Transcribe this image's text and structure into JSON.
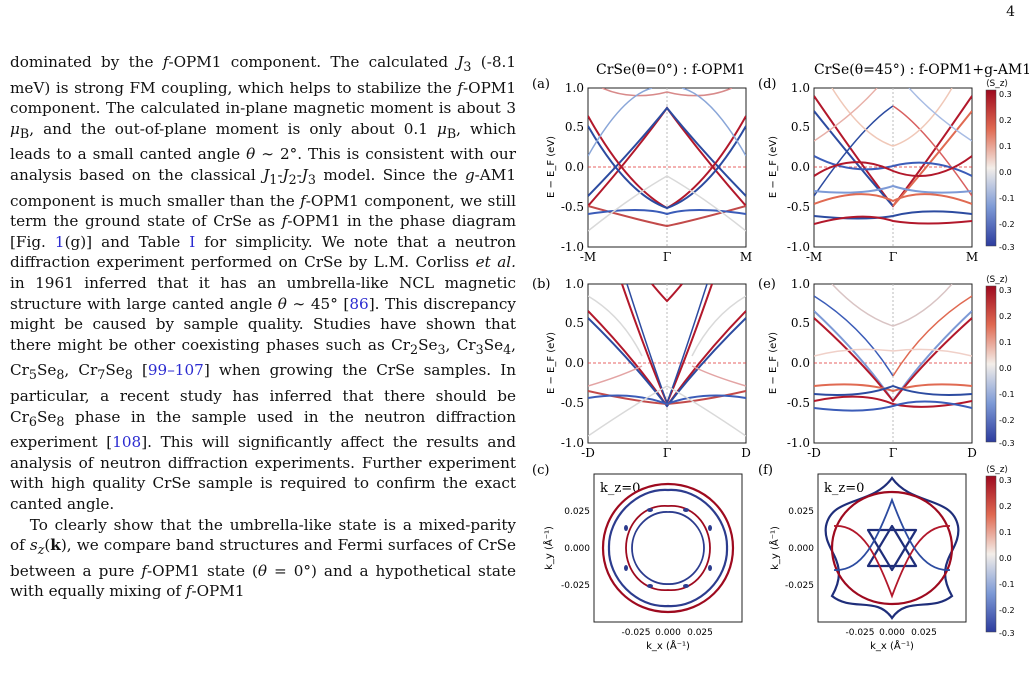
{
  "page_number": "4",
  "paragraph1": "dominated by the f-OPM1 component. The calculated J3 (-8.1 meV) is strong FM coupling, which helps to stabilize the f-OPM1 component. The calculated in-plane magnetic moment is about 3 μB, and the out-of-plane moment is only about 0.1 μB, which leads to a small canted angle θ ∼ 2°. This is consistent with our analysis based on the classical J1-J2-J3 model. Since the g-AM1 component is much smaller than the f-OPM1 component, we still term the ground state of CrSe as f-OPM1 in the phase diagram [Fig. 1(g)] and Table I for simplicity. We note that a neutron diffraction experiment performed on CrSe by L.M. Corliss et al. in 1961 inferred that it has an umbrella-like NCL magnetic structure with large canted angle θ ∼ 45° [86]. This discrepancy might be caused by sample quality. Studies have shown that there might be other coexisting phases such as Cr2Se3, Cr3Se4, Cr5Se8, Cr7Se8 [99–107] when growing the CrSe samples. In particular, a recent study has inferred that there should be Cr6Se8 phase in the sample used in the neutron diffraction experiment [108]. This will significantly affect the results and analysis of neutron diffraction experiments. Further experiment with high quality CrSe sample is required to confirm the exact canted angle.",
  "paragraph2": "To clearly show that the umbrella-like state is a mixed-parity of sz(k), we compare band structures and Fermi surfaces of CrSe between a pure f-OPM1 state (θ = 0°) and a hypothetical state with equally mixing of f-OPM1",
  "figure": {
    "title_left": "CrSe(θ=0°) : f-OPM1",
    "title_right": "CrSe(θ=45°) : f-OPM1+g-AM1",
    "panels": {
      "a": "(a)",
      "b": "(b)",
      "c": "(c)",
      "d": "(d)",
      "e": "(e)",
      "f": "(f)"
    },
    "band_ylabel": "E − E_F (eV)",
    "band_yticks": [
      "1.0",
      "0.5",
      "0.0",
      "-0.5",
      "-1.0"
    ],
    "path_top": [
      "-M",
      "Γ",
      "M"
    ],
    "path_mid": [
      "-D",
      "Γ",
      "D"
    ],
    "fs_label": "k_z=0",
    "fs_xlabel": "k_x (Å⁻¹)",
    "fs_ylabel": "k_y (Å⁻¹)",
    "fs_yticks": [
      "0.025",
      "0.000",
      "-0.025"
    ],
    "fs_xticks": [
      "-0.025",
      "0.000",
      "0.025"
    ],
    "colorbar_label": "⟨S_z⟩",
    "colorbar_ticks": [
      "0.3",
      "0.2",
      "0.1",
      "0.0",
      "-0.1",
      "-0.2",
      "-0.3"
    ]
  },
  "colors": {
    "spin_up": "#b2182b",
    "spin_down": "#2c4ba0",
    "fermi_line": "#e03030",
    "link": "#2b2bd0"
  }
}
